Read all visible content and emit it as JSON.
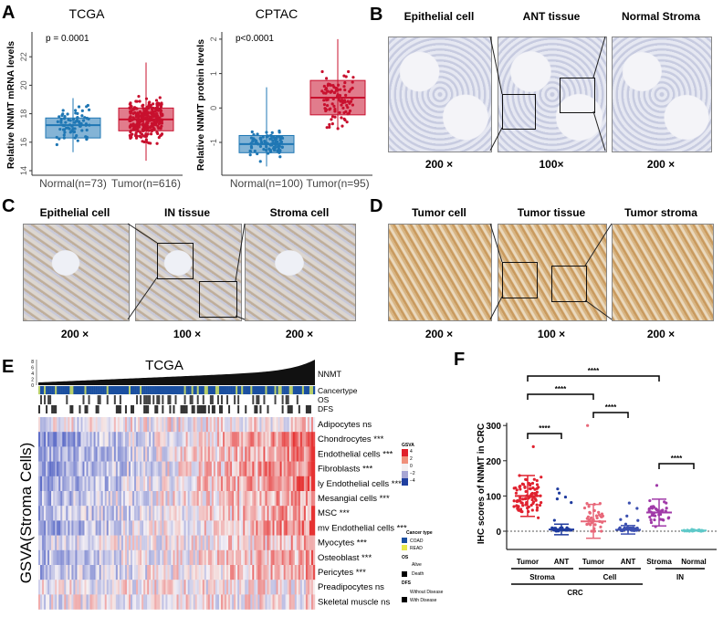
{
  "panels": {
    "A": "A",
    "B": "B",
    "C": "C",
    "D": "D",
    "E": "E",
    "F": "F"
  },
  "panelB": {
    "labels": [
      "Epithelial cell",
      "ANT tissue",
      "Normal Stroma"
    ],
    "mags": [
      "200 ×",
      "100×",
      "200 ×"
    ]
  },
  "panelC": {
    "labels": [
      "Epithelial cell",
      "IN tissue",
      "Stroma cell"
    ],
    "mags": [
      "200 ×",
      "100 ×",
      "200 ×"
    ]
  },
  "panelD": {
    "labels": [
      "Tumor cell",
      "Tumor tissue",
      "Tumor stroma"
    ],
    "mags": [
      "200 ×",
      "100 ×",
      "200 ×"
    ]
  },
  "chart_data": [
    {
      "type": "box",
      "title": "TCGA",
      "ylabel": "Relative NNMT mRNA levels",
      "annotation": "p = 0.0001",
      "ylim": [
        14,
        23
      ],
      "yticks": [
        "14",
        "16",
        "18",
        "20",
        "22"
      ],
      "categories": [
        "Normal(n=73)",
        "Tumor(n=616)"
      ],
      "colors": [
        "#1f77b4",
        "#c8102e"
      ],
      "series": [
        {
          "name": "Normal",
          "n": 73,
          "min": 15.3,
          "q1": 16.3,
          "median": 17.2,
          "q3": 17.7,
          "max": 19.1
        },
        {
          "name": "Tumor",
          "n": 616,
          "min": 14.7,
          "q1": 16.8,
          "median": 17.6,
          "q3": 18.4,
          "max": 21.6
        }
      ]
    },
    {
      "type": "box",
      "title": "CPTAC",
      "ylabel": "Relative NNMT protein levels",
      "annotation": "p<0.0001",
      "ylim": [
        -1.8,
        2.2
      ],
      "yticks": [
        "-1",
        "0",
        "1",
        "2"
      ],
      "categories": [
        "Normal(n=100)",
        "Tumor(n=95)"
      ],
      "colors": [
        "#1f77b4",
        "#c8102e"
      ],
      "series": [
        {
          "name": "Normal",
          "n": 100,
          "min": -1.7,
          "q1": -1.3,
          "median": -1.05,
          "q3": -0.8,
          "max": 0.6
        },
        {
          "name": "Tumor",
          "n": 95,
          "min": -0.6,
          "q1": -0.2,
          "median": 0.3,
          "q3": 0.8,
          "max": 2.0
        }
      ]
    },
    {
      "type": "heatmap",
      "title": "TCGA",
      "ylabel": "GSVA(Stroma Cells)",
      "top_track": "NNMT",
      "top_ticks": [
        "0",
        "2",
        "4",
        "6",
        "8"
      ],
      "tracks": [
        "Cancertype",
        "OS",
        "DFS"
      ],
      "rows": [
        "Adipocytes ns",
        "Chondrocytes ***",
        "Endothelial cells ***",
        "Fibroblasts ***",
        "ly Endothelial cells ***",
        "Mesangial cells ***",
        "MSC ***",
        "mv Endothelial cells ***",
        "Myocytes ***",
        "Osteoblast ***",
        "Pericytes ***",
        "Preadipocytes ns",
        "Skeletal muscle ns"
      ],
      "row_trend": [
        0.1,
        0.9,
        0.8,
        0.85,
        0.8,
        0.6,
        0.6,
        0.75,
        0.4,
        0.5,
        0.55,
        0.1,
        0.1
      ],
      "legend": {
        "gsva_title": "GSVA",
        "gsva_ticks": [
          "4",
          "2",
          "0",
          "−2",
          "−4"
        ],
        "cancer_title": "Cancer type",
        "cancer": [
          "COAD",
          "READ"
        ],
        "cancer_colors": [
          "#1a4fa0",
          "#e8e84a"
        ],
        "os_title": "OS",
        "os": [
          "Alive",
          "Death"
        ],
        "dfs_title": "DFS",
        "dfs": [
          "Without Disease",
          "With Disease"
        ]
      }
    },
    {
      "type": "scatter",
      "ylabel": "IHC scores of NNMT in CRC",
      "ylim": [
        -50,
        300
      ],
      "yticks": [
        "0",
        "100",
        "200",
        "300"
      ],
      "categories": [
        "Tumor",
        "ANT",
        "Tumor",
        "ANT",
        "Stroma",
        "Normal"
      ],
      "groups": [
        "Stroma",
        "Cell",
        "IN"
      ],
      "supergroup": "CRC",
      "colors": [
        "#e0212e",
        "#1e3a9e",
        "#e8687a",
        "#3b4fb0",
        "#a03aa8",
        "#5fc9c9"
      ],
      "series": [
        {
          "mean": 100,
          "sd": 58,
          "max": 240
        },
        {
          "mean": 5,
          "sd": 15,
          "max": 120
        },
        {
          "mean": 28,
          "sd": 48,
          "max": 300
        },
        {
          "mean": 4,
          "sd": 12,
          "max": 80
        },
        {
          "mean": 53,
          "sd": 38,
          "max": 130
        },
        {
          "mean": 2,
          "sd": 1,
          "max": 5
        }
      ],
      "significance": [
        "****",
        "****",
        "****",
        "****",
        "****"
      ]
    }
  ]
}
